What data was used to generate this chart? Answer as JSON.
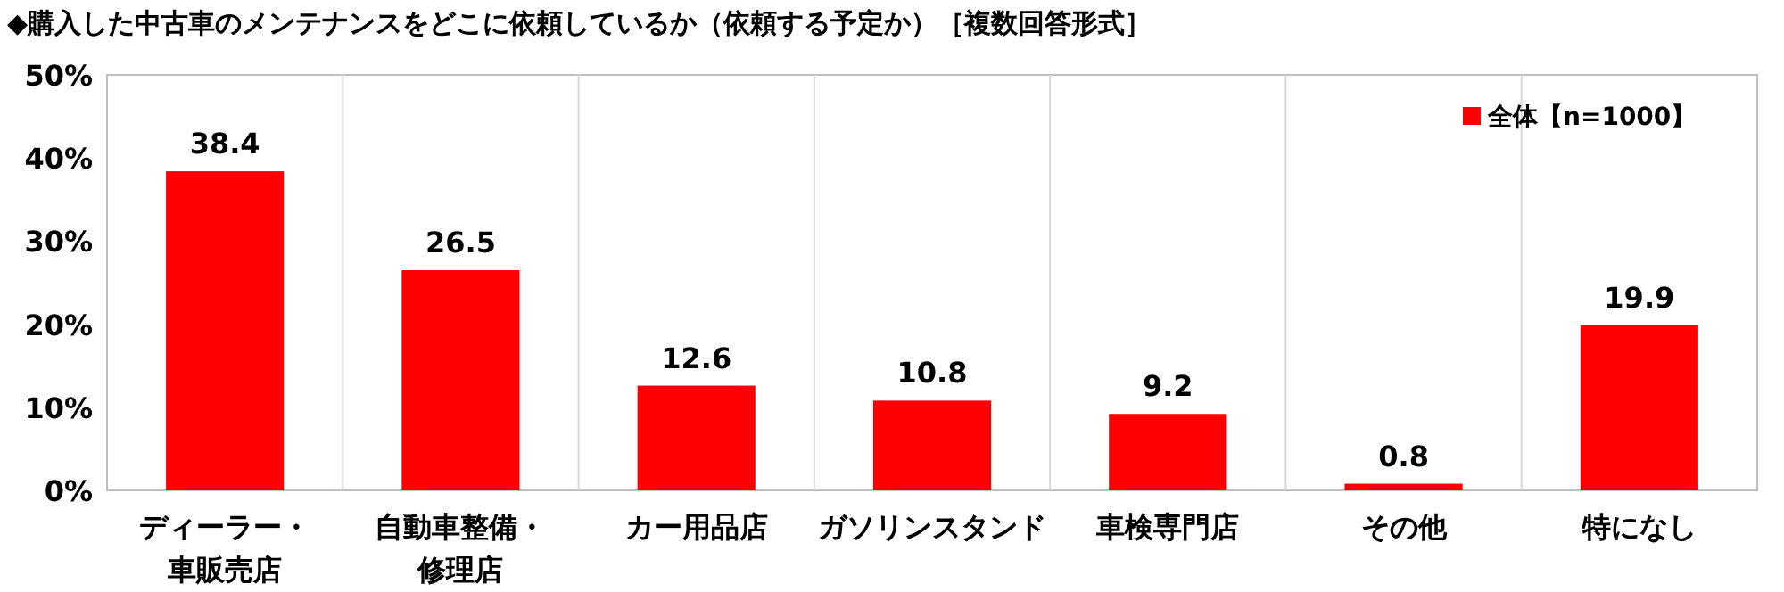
{
  "chart_data": {
    "type": "bar",
    "title": "◆購入した中古車のメンテナンスをどこに依頼しているか（依頼する予定か）［複数回答形式］",
    "categories": [
      "ディーラー・車販売店",
      "自動車整備・修理店",
      "カー用品店",
      "ガソリンスタンド",
      "車検専門店",
      "その他",
      "特になし"
    ],
    "series": [
      {
        "name": "全体【n=1000】",
        "color": "#ff0000",
        "values": [
          38.4,
          26.5,
          12.6,
          10.8,
          9.2,
          0.8,
          19.9
        ]
      }
    ],
    "ylim": [
      0,
      50
    ],
    "yticks": [
      {
        "value": 0,
        "label": "0%"
      },
      {
        "value": 10,
        "label": "10%"
      },
      {
        "value": 20,
        "label": "20%"
      },
      {
        "value": 30,
        "label": "30%"
      },
      {
        "value": 40,
        "label": "40%"
      },
      {
        "value": 50,
        "label": "50%"
      }
    ],
    "grid": "x",
    "legend": "top right",
    "data_labels": true
  }
}
